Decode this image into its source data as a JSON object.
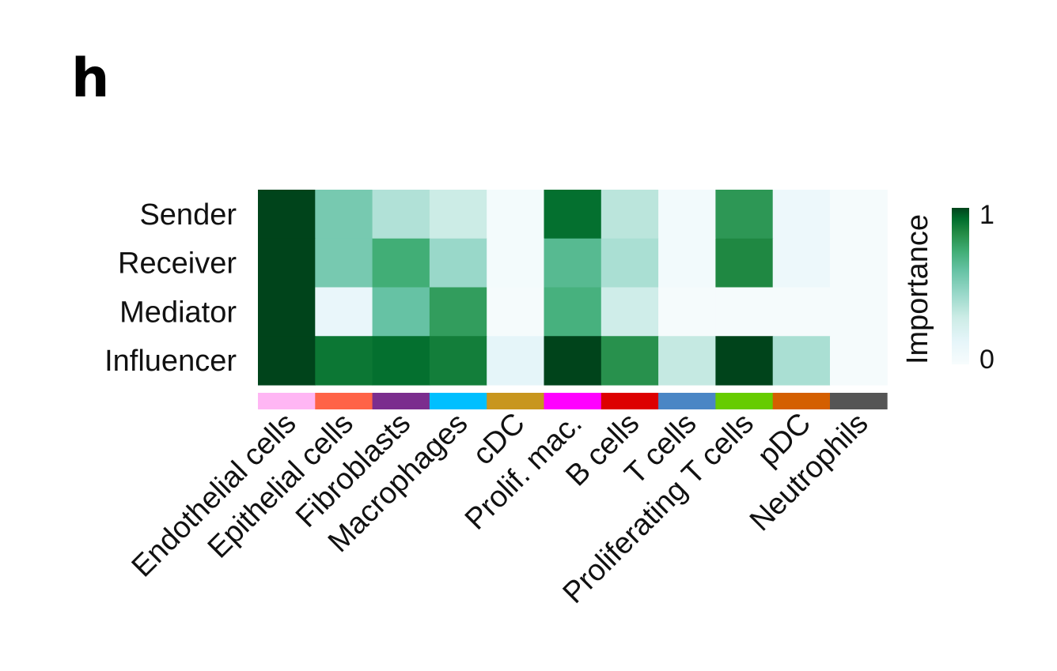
{
  "panel_label": "h",
  "chart_data": {
    "type": "heatmap",
    "rows": [
      "Sender",
      "Receiver",
      "Mediator",
      "Influencer"
    ],
    "columns": [
      "Endothelial cells",
      "Epithelial cells",
      "Fibroblasts",
      "Macrophages",
      "cDC",
      "Prolif. mac.",
      "B cells",
      "T cells",
      "Proliferating T cells",
      "pDC",
      "Neutrophils"
    ],
    "values": [
      [
        1.0,
        0.55,
        0.38,
        0.3,
        0.03,
        0.92,
        0.35,
        0.04,
        0.8,
        0.08,
        0.02
      ],
      [
        1.0,
        0.55,
        0.72,
        0.45,
        0.03,
        0.65,
        0.4,
        0.04,
        0.85,
        0.08,
        0.02
      ],
      [
        1.0,
        0.12,
        0.6,
        0.78,
        0.02,
        0.7,
        0.28,
        0.02,
        0.02,
        0.02,
        0.02
      ],
      [
        1.0,
        0.9,
        0.92,
        0.88,
        0.15,
        1.0,
        0.82,
        0.32,
        1.0,
        0.4,
        0.02
      ]
    ],
    "column_colors": [
      "#ffb6f4",
      "#ff6347",
      "#7b2d8e",
      "#00bfff",
      "#c8961e",
      "#ff00ff",
      "#dd0000",
      "#4a86c5",
      "#66cc00",
      "#d45f00",
      "#555555"
    ],
    "colorscale": {
      "low": "#f7fbfb",
      "high": "#00441b"
    },
    "legend": {
      "title": "Importance",
      "min_label": "0",
      "max_label": "1"
    }
  }
}
